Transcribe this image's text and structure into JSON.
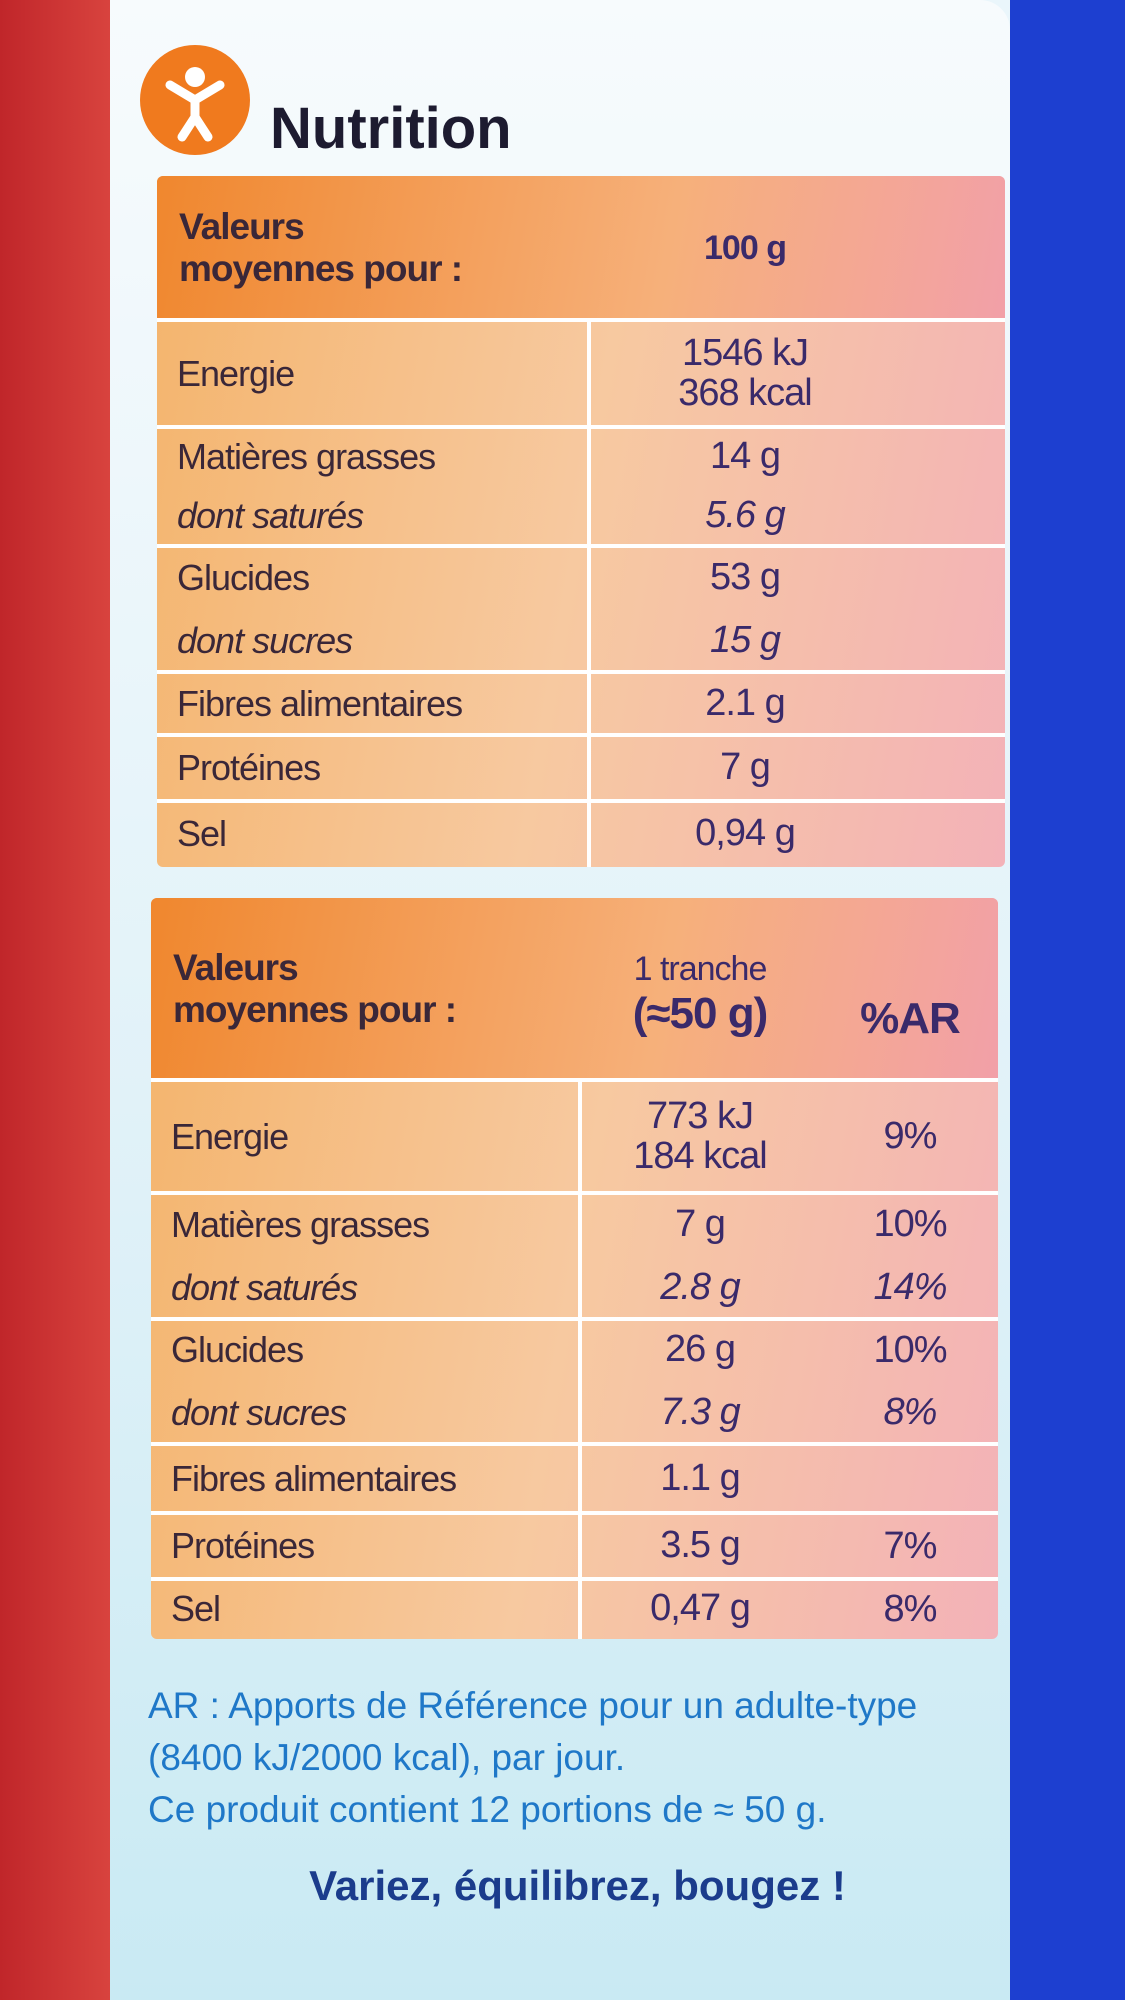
{
  "title": "Nutrition",
  "tables": [
    {
      "header": {
        "label": [
          "Valeurs",
          "moyennes pour :"
        ],
        "amount": [
          "100 g"
        ]
      },
      "groups": [
        {
          "rows": [
            {
              "label": "Energie",
              "value": [
                "1546 kJ",
                "368 kcal"
              ]
            }
          ]
        },
        {
          "rows": [
            {
              "label": "Matières grasses",
              "value": [
                "14 g"
              ]
            },
            {
              "label": "dont saturés",
              "value": [
                "5.6 g"
              ]
            }
          ]
        },
        {
          "rows": [
            {
              "label": "Glucides",
              "value": [
                "53 g"
              ]
            },
            {
              "label": "dont sucres",
              "value": [
                "15 g"
              ]
            }
          ]
        },
        {
          "rows": [
            {
              "label": "Fibres alimentaires",
              "value": [
                "2.1 g"
              ]
            }
          ]
        },
        {
          "rows": [
            {
              "label": "Protéines",
              "value": [
                "7 g"
              ]
            }
          ]
        },
        {
          "rows": [
            {
              "label": "Sel",
              "value": [
                "0,94 g"
              ]
            }
          ]
        }
      ]
    },
    {
      "header": {
        "label": [
          "Valeurs",
          "moyennes pour :"
        ],
        "amount": [
          "1 tranche",
          "(≈50 g)"
        ],
        "ar": "%AR"
      },
      "groups": [
        {
          "rows": [
            {
              "label": "Energie",
              "value": [
                "773 kJ",
                "184 kcal"
              ],
              "ar": "9%"
            }
          ]
        },
        {
          "rows": [
            {
              "label": "Matières grasses",
              "value": [
                "7 g"
              ],
              "ar": "10%"
            },
            {
              "label": "dont saturés",
              "value": [
                "2.8 g"
              ],
              "ar": "14%"
            }
          ]
        },
        {
          "rows": [
            {
              "label": "Glucides",
              "value": [
                "26 g"
              ],
              "ar": "10%"
            },
            {
              "label": "dont sucres",
              "value": [
                "7.3 g"
              ],
              "ar": "8%"
            }
          ]
        },
        {
          "rows": [
            {
              "label": "Fibres alimentaires",
              "value": [
                "1.1 g"
              ]
            }
          ]
        },
        {
          "rows": [
            {
              "label": "Protéines",
              "value": [
                "3.5 g"
              ],
              "ar": "7%"
            }
          ]
        },
        {
          "rows": [
            {
              "label": "Sel",
              "value": [
                "0,47 g"
              ],
              "ar": "8%"
            }
          ]
        }
      ]
    }
  ],
  "notes": [
    "AR : Apports de Référence pour un adulte-type",
    "(8400 kJ/2000 kcal), par jour.",
    "Ce produit contient 12 portions de ≈ 50 g."
  ],
  "slogan": "Variez, équilibrez, bougez !"
}
